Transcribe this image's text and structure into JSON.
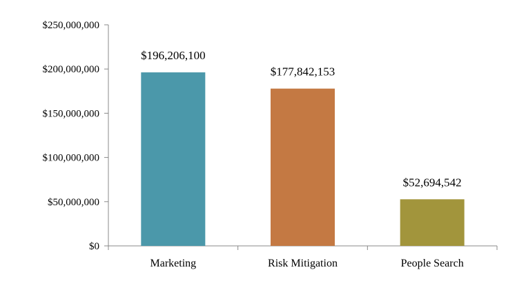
{
  "chart_data": {
    "type": "bar",
    "title": "",
    "xlabel": "",
    "ylabel": "",
    "categories": [
      "Marketing",
      "Risk Mitigation",
      "People Search"
    ],
    "values": [
      196206100,
      177842153,
      52694542
    ],
    "data_labels": [
      "$196,206,100",
      "$177,842,153",
      "$52,694,542"
    ],
    "colors": [
      "#4b98aa",
      "#c47943",
      "#a2953c"
    ],
    "ylim": [
      0,
      250000000
    ],
    "yticks": [
      0,
      50000000,
      100000000,
      150000000,
      200000000,
      250000000
    ],
    "ytick_labels": [
      "$0",
      "$50,000,000",
      "$100,000,000",
      "$150,000,000",
      "$200,000,000",
      "$250,000,000"
    ],
    "grid": false,
    "legend": "none"
  }
}
